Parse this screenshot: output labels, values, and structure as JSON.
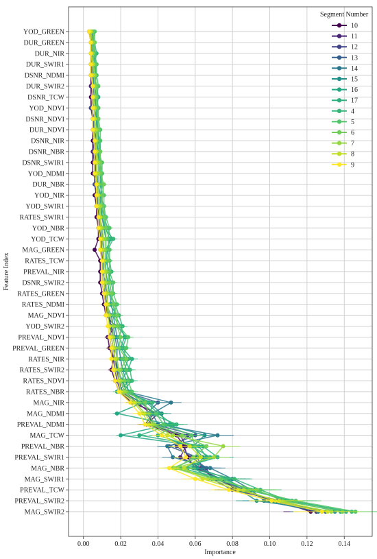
{
  "chart_data": {
    "type": "line",
    "orientation": "horizontal",
    "xlabel": "Importance",
    "ylabel": "Feature Index",
    "xlim": [
      -0.008,
      0.155
    ],
    "xticks": [
      "0.00",
      "0.02",
      "0.04",
      "0.06",
      "0.08",
      "0.10",
      "0.12",
      "0.14"
    ],
    "grid": true,
    "legend_title": "Segment Number",
    "legend_position": "top-right",
    "features": [
      "YOD_GREEN",
      "DUR_GREEN",
      "DUR_NIR",
      "DUR_SWIR1",
      "DSNR_NDMI",
      "DUR_SWIR2",
      "DSNR_TCW",
      "YOD_NDVI",
      "DSNR_NDVI",
      "DUR_NDVI",
      "DSNR_NIR",
      "DSNR_NBR",
      "DSNR_SWIR1",
      "YOD_NDMI",
      "DUR_NBR",
      "YOD_NIR",
      "YOD_SWIR1",
      "RATES_SWIR1",
      "YOD_NBR",
      "YOD_TCW",
      "MAG_GREEN",
      "RATES_TCW",
      "PREVAL_NIR",
      "DSNR_SWIR2",
      "RATES_GREEN",
      "RATES_NDMI",
      "MAG_NDVI",
      "YOD_SWIR2",
      "PREVAL_NDVI",
      "PREVAL_GREEN",
      "RATES_NIR",
      "RATES_SWIR2",
      "RATES_NDVI",
      "RATES_NBR",
      "MAG_NIR",
      "MAG_NDMI",
      "PREVAL_NDMI",
      "MAG_TCW",
      "PREVAL_NBR",
      "PREVAL_SWIR1",
      "MAG_NBR",
      "MAG_SWIR1",
      "PREVAL_TCW",
      "PREVAL_SWIR2",
      "MAG_SWIR2"
    ],
    "series": [
      {
        "name": "10",
        "color": "#440154",
        "values": [
          0.003,
          0.004,
          0.004,
          0.004,
          0.004,
          0.004,
          0.004,
          0.004,
          0.005,
          0.005,
          0.005,
          0.005,
          0.005,
          0.005,
          0.008,
          0.006,
          0.007,
          0.007,
          0.008,
          0.008,
          0.006,
          0.009,
          0.009,
          0.009,
          0.01,
          0.011,
          0.012,
          0.017,
          0.013,
          0.014,
          0.016,
          0.015,
          0.017,
          0.019,
          0.026,
          0.04,
          0.034,
          0.05,
          0.054,
          0.056,
          0.06,
          0.074,
          0.082,
          0.104,
          0.122
        ]
      },
      {
        "name": "11",
        "color": "#482475",
        "values": [
          0.004,
          0.004,
          0.005,
          0.004,
          0.005,
          0.004,
          0.005,
          0.005,
          0.005,
          0.006,
          0.006,
          0.005,
          0.006,
          0.006,
          0.006,
          0.007,
          0.007,
          0.008,
          0.009,
          0.009,
          0.01,
          0.01,
          0.01,
          0.01,
          0.011,
          0.012,
          0.013,
          0.015,
          0.014,
          0.015,
          0.016,
          0.017,
          0.018,
          0.02,
          0.029,
          0.036,
          0.036,
          0.052,
          0.055,
          0.052,
          0.063,
          0.071,
          0.085,
          0.102,
          0.125
        ]
      },
      {
        "name": "12",
        "color": "#414487",
        "values": [
          0.004,
          0.004,
          0.004,
          0.005,
          0.004,
          0.005,
          0.005,
          0.004,
          0.006,
          0.005,
          0.006,
          0.006,
          0.006,
          0.007,
          0.006,
          0.007,
          0.008,
          0.008,
          0.008,
          0.01,
          0.009,
          0.01,
          0.011,
          0.011,
          0.012,
          0.012,
          0.014,
          0.014,
          0.015,
          0.016,
          0.017,
          0.018,
          0.019,
          0.021,
          0.031,
          0.038,
          0.033,
          0.056,
          0.05,
          0.058,
          0.066,
          0.069,
          0.08,
          0.106,
          0.128
        ]
      },
      {
        "name": "13",
        "color": "#355f8d",
        "values": [
          0.005,
          0.004,
          0.005,
          0.005,
          0.005,
          0.005,
          0.006,
          0.005,
          0.005,
          0.006,
          0.007,
          0.006,
          0.007,
          0.006,
          0.007,
          0.008,
          0.007,
          0.009,
          0.009,
          0.009,
          0.01,
          0.011,
          0.01,
          0.012,
          0.011,
          0.013,
          0.013,
          0.015,
          0.016,
          0.017,
          0.016,
          0.019,
          0.02,
          0.022,
          0.04,
          0.034,
          0.038,
          0.06,
          0.046,
          0.061,
          0.064,
          0.072,
          0.087,
          0.1,
          0.13
        ]
      },
      {
        "name": "14",
        "color": "#2a788e",
        "values": [
          0.004,
          0.005,
          0.004,
          0.005,
          0.006,
          0.005,
          0.005,
          0.006,
          0.006,
          0.006,
          0.006,
          0.007,
          0.007,
          0.007,
          0.008,
          0.007,
          0.009,
          0.008,
          0.01,
          0.01,
          0.011,
          0.01,
          0.011,
          0.011,
          0.013,
          0.012,
          0.015,
          0.016,
          0.017,
          0.018,
          0.018,
          0.018,
          0.021,
          0.023,
          0.047,
          0.037,
          0.04,
          0.072,
          0.045,
          0.048,
          0.068,
          0.08,
          0.09,
          0.097,
          0.126
        ]
      },
      {
        "name": "15",
        "color": "#21918c",
        "values": [
          0.005,
          0.005,
          0.006,
          0.006,
          0.005,
          0.006,
          0.007,
          0.006,
          0.007,
          0.007,
          0.007,
          0.008,
          0.008,
          0.008,
          0.008,
          0.009,
          0.009,
          0.01,
          0.011,
          0.012,
          0.012,
          0.012,
          0.012,
          0.013,
          0.014,
          0.015,
          0.016,
          0.017,
          0.018,
          0.019,
          0.02,
          0.021,
          0.023,
          0.024,
          0.035,
          0.042,
          0.044,
          0.065,
          0.059,
          0.064,
          0.061,
          0.078,
          0.084,
          0.093,
          0.135
        ]
      },
      {
        "name": "16",
        "color": "#22a884",
        "values": [
          0.005,
          0.006,
          0.005,
          0.006,
          0.007,
          0.006,
          0.006,
          0.007,
          0.007,
          0.008,
          0.008,
          0.007,
          0.009,
          0.009,
          0.009,
          0.01,
          0.01,
          0.01,
          0.012,
          0.014,
          0.013,
          0.012,
          0.014,
          0.014,
          0.015,
          0.016,
          0.017,
          0.02,
          0.022,
          0.02,
          0.024,
          0.022,
          0.025,
          0.018,
          0.032,
          0.018,
          0.046,
          0.02,
          0.062,
          0.066,
          0.059,
          0.069,
          0.092,
          0.108,
          0.138
        ]
      },
      {
        "name": "17",
        "color": "#2ab07f",
        "values": [
          0.006,
          0.005,
          0.006,
          0.007,
          0.006,
          0.007,
          0.008,
          0.007,
          0.008,
          0.007,
          0.009,
          0.009,
          0.008,
          0.009,
          0.01,
          0.009,
          0.011,
          0.011,
          0.013,
          0.015,
          0.012,
          0.013,
          0.013,
          0.015,
          0.016,
          0.014,
          0.018,
          0.018,
          0.023,
          0.021,
          0.026,
          0.024,
          0.02,
          0.025,
          0.034,
          0.04,
          0.048,
          0.03,
          0.064,
          0.072,
          0.052,
          0.076,
          0.088,
          0.112,
          0.141
        ]
      },
      {
        "name": "4",
        "color": "#35b779",
        "values": [
          0.005,
          0.006,
          0.007,
          0.006,
          0.007,
          0.006,
          0.007,
          0.008,
          0.007,
          0.008,
          0.008,
          0.009,
          0.009,
          0.01,
          0.009,
          0.01,
          0.009,
          0.012,
          0.011,
          0.016,
          0.013,
          0.014,
          0.015,
          0.013,
          0.014,
          0.017,
          0.019,
          0.021,
          0.019,
          0.022,
          0.022,
          0.025,
          0.026,
          0.021,
          0.037,
          0.036,
          0.05,
          0.04,
          0.058,
          0.068,
          0.056,
          0.081,
          0.095,
          0.11,
          0.144
        ]
      },
      {
        "name": "5",
        "color": "#52c569",
        "values": [
          0.006,
          0.006,
          0.006,
          0.007,
          0.007,
          0.008,
          0.007,
          0.008,
          0.008,
          0.009,
          0.009,
          0.008,
          0.01,
          0.01,
          0.01,
          0.011,
          0.011,
          0.012,
          0.014,
          0.013,
          0.014,
          0.014,
          0.014,
          0.016,
          0.016,
          0.018,
          0.016,
          0.019,
          0.024,
          0.023,
          0.021,
          0.023,
          0.024,
          0.026,
          0.03,
          0.039,
          0.043,
          0.058,
          0.06,
          0.062,
          0.048,
          0.074,
          0.089,
          0.114,
          0.146
        ]
      },
      {
        "name": "6",
        "color": "#6ece58",
        "values": [
          0.005,
          0.006,
          0.005,
          0.006,
          0.006,
          0.007,
          0.007,
          0.007,
          0.008,
          0.008,
          0.007,
          0.009,
          0.009,
          0.009,
          0.011,
          0.01,
          0.01,
          0.011,
          0.012,
          0.012,
          0.012,
          0.013,
          0.013,
          0.014,
          0.015,
          0.016,
          0.018,
          0.018,
          0.02,
          0.019,
          0.023,
          0.02,
          0.022,
          0.023,
          0.033,
          0.035,
          0.038,
          0.053,
          0.066,
          0.059,
          0.05,
          0.07,
          0.093,
          0.107,
          0.139
        ]
      },
      {
        "name": "7",
        "color": "#95d840",
        "values": [
          0.004,
          0.005,
          0.005,
          0.005,
          0.006,
          0.006,
          0.006,
          0.006,
          0.006,
          0.007,
          0.007,
          0.007,
          0.008,
          0.008,
          0.008,
          0.008,
          0.009,
          0.009,
          0.01,
          0.011,
          0.011,
          0.011,
          0.012,
          0.012,
          0.013,
          0.013,
          0.014,
          0.016,
          0.016,
          0.017,
          0.018,
          0.019,
          0.02,
          0.022,
          0.028,
          0.033,
          0.037,
          0.048,
          0.075,
          0.07,
          0.049,
          0.067,
          0.086,
          0.103,
          0.133
        ]
      },
      {
        "name": "8",
        "color": "#c0df25",
        "values": [
          0.004,
          0.004,
          0.004,
          0.005,
          0.005,
          0.005,
          0.005,
          0.006,
          0.006,
          0.006,
          0.006,
          0.007,
          0.007,
          0.007,
          0.007,
          0.008,
          0.008,
          0.009,
          0.009,
          0.01,
          0.01,
          0.011,
          0.011,
          0.011,
          0.012,
          0.013,
          0.013,
          0.014,
          0.015,
          0.016,
          0.017,
          0.017,
          0.019,
          0.02,
          0.027,
          0.032,
          0.035,
          0.045,
          0.057,
          0.063,
          0.054,
          0.064,
          0.083,
          0.105,
          0.131
        ]
      },
      {
        "name": "9",
        "color": "#fde725",
        "values": [
          0.003,
          0.004,
          0.004,
          0.004,
          0.004,
          0.005,
          0.005,
          0.005,
          0.005,
          0.005,
          0.006,
          0.006,
          0.006,
          0.006,
          0.007,
          0.007,
          0.007,
          0.008,
          0.008,
          0.009,
          0.009,
          0.01,
          0.01,
          0.01,
          0.011,
          0.012,
          0.012,
          0.013,
          0.014,
          0.015,
          0.015,
          0.016,
          0.017,
          0.019,
          0.025,
          0.03,
          0.033,
          0.042,
          0.052,
          0.055,
          0.046,
          0.06,
          0.078,
          0.101,
          0.128
        ]
      }
    ]
  }
}
